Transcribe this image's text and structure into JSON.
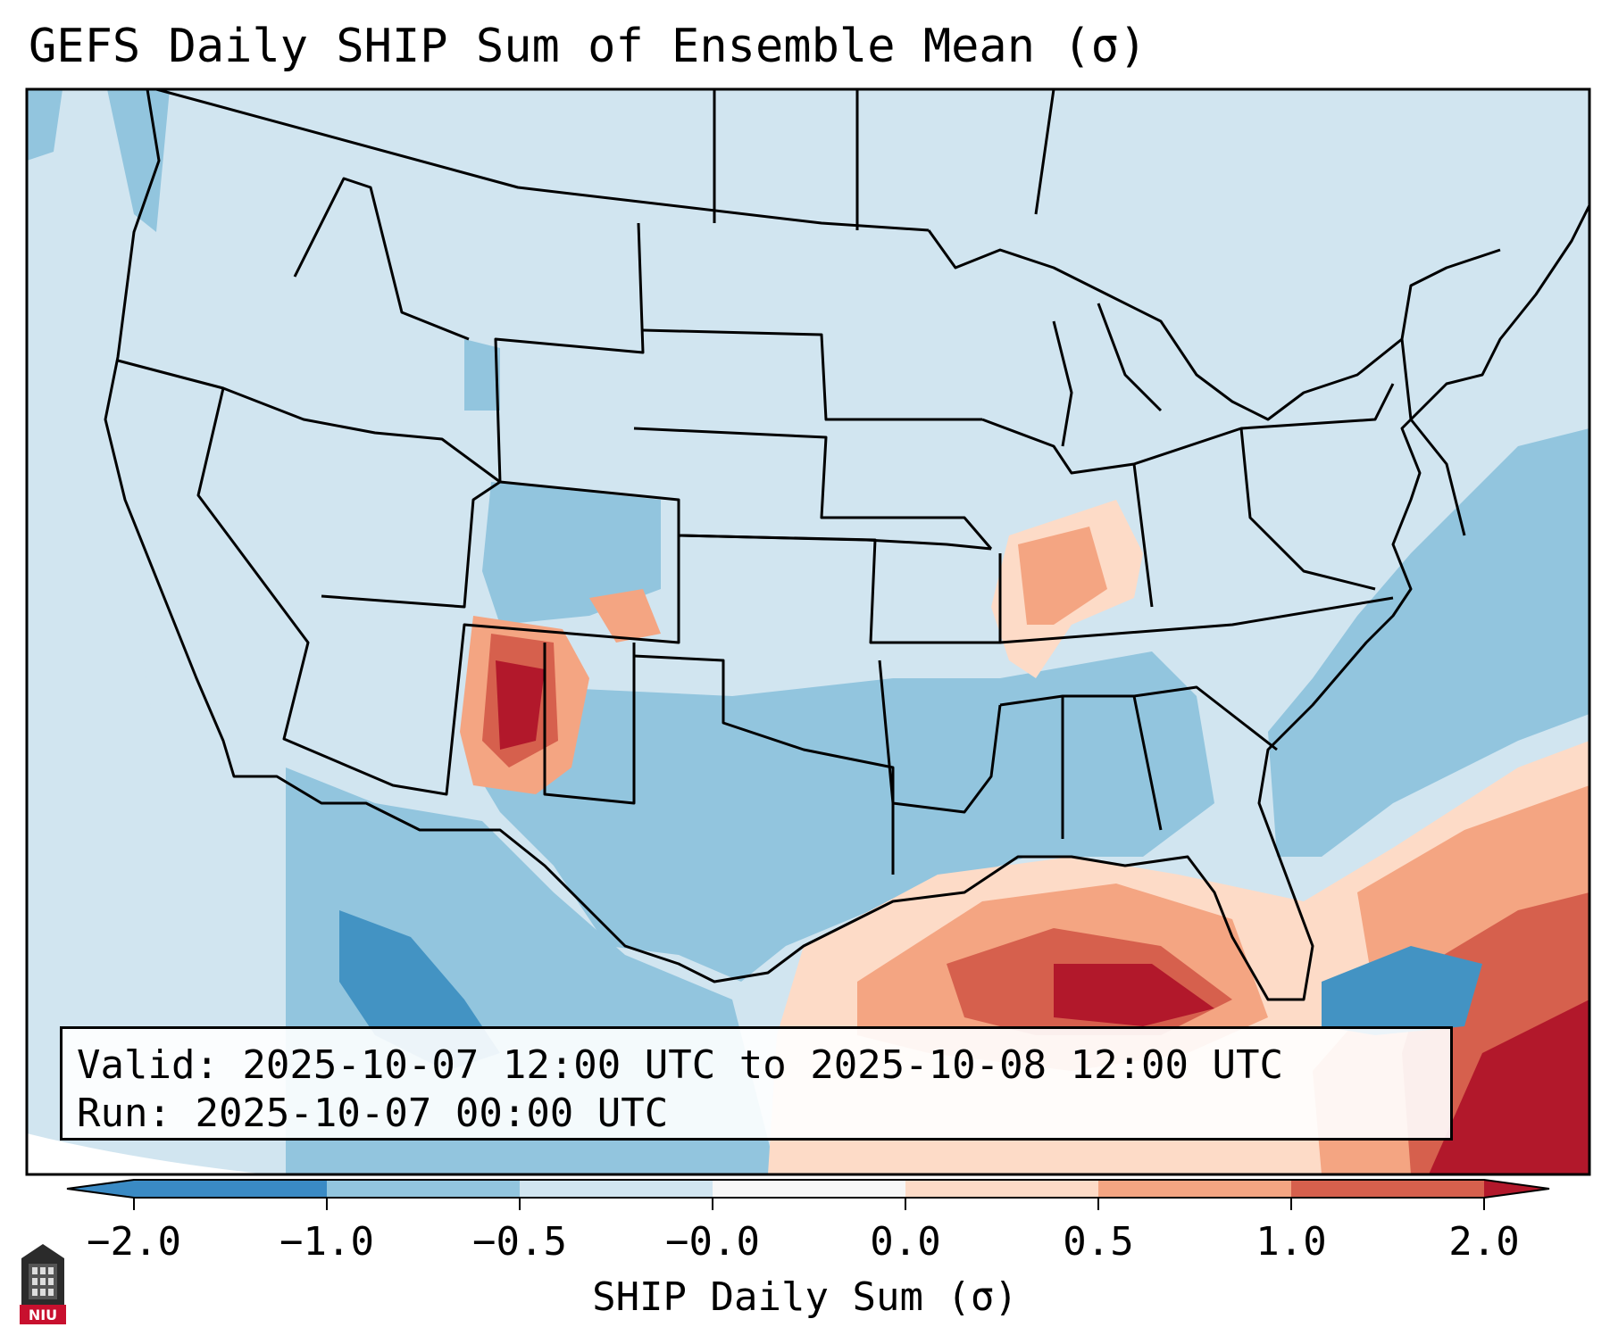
{
  "title": "GEFS Daily SHIP Sum of Ensemble Mean (σ)",
  "info": {
    "valid_line": "Valid: 2025-10-07 12:00 UTC to 2025-10-08 12:00 UTC",
    "run_line": "Run:   2025-10-07 00:00 UTC"
  },
  "colorbar": {
    "label": "SHIP Daily Sum (σ)",
    "ticks": [
      "−2.0",
      "−1.0",
      "−0.5",
      "−0.0",
      "0.0",
      "0.5",
      "1.0",
      "2.0"
    ],
    "colors": [
      "#3a8ac4",
      "#92c5de",
      "#d1e5f0",
      "#f7f7f7",
      "#fddbc7",
      "#f4a582",
      "#d6604d",
      "#b2182b"
    ]
  },
  "logo": {
    "text": "NIU",
    "icon": "niu-logo-icon"
  }
}
